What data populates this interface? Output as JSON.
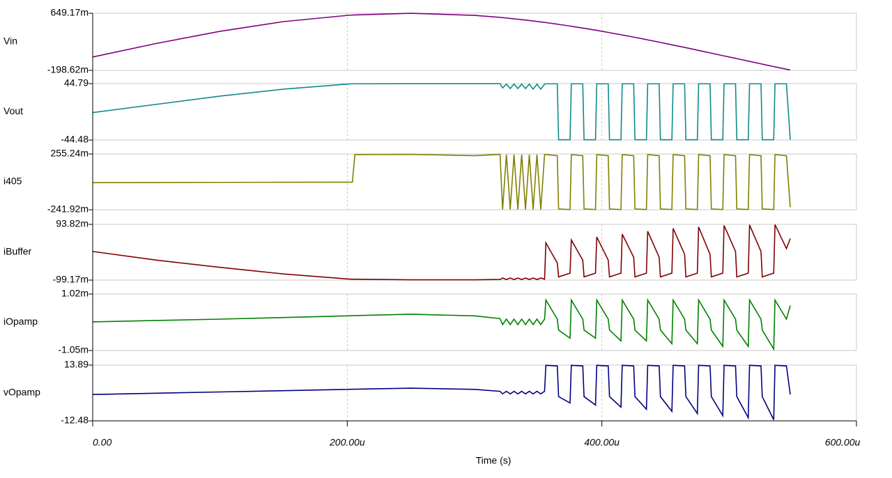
{
  "chart_data": {
    "type": "line",
    "xlabel": "Time (s)",
    "xlim": [
      0,
      0.0006
    ],
    "xticks": [
      {
        "value": 0,
        "label": "0.00"
      },
      {
        "value": 0.0002,
        "label": "200.00u"
      },
      {
        "value": 0.0004,
        "label": "400.00u"
      },
      {
        "value": 0.0006,
        "label": "600.00u"
      }
    ],
    "grid": true,
    "x": [
      0,
      5e-05,
      0.0001,
      0.00015,
      0.0002,
      0.000204,
      0.000206,
      0.00025,
      0.0003,
      0.00032,
      0.000322,
      0.000325,
      0.000328,
      0.000331,
      0.000334,
      0.000337,
      0.00034,
      0.000343,
      0.000346,
      0.000349,
      0.000352,
      0.000355,
      0.000356,
      0.000365,
      0.000366,
      0.000375,
      0.000376,
      0.000385,
      0.000386,
      0.000395,
      0.000396,
      0.000405,
      0.000406,
      0.000415,
      0.000416,
      0.000425,
      0.000426,
      0.000435,
      0.000436,
      0.000445,
      0.000446,
      0.000455,
      0.000456,
      0.000465,
      0.000466,
      0.000475,
      0.000476,
      0.000485,
      0.000486,
      0.000495,
      0.000496,
      0.000505,
      0.000506,
      0.000515,
      0.000516,
      0.000525,
      0.000526,
      0.000535,
      0.000536,
      0.000545,
      0.000548
    ],
    "series": [
      {
        "name": "Vin",
        "color": "#800080",
        "ylim": [
          -0.19862,
          0.64917
        ],
        "yticks": [
          {
            "value": -0.19862,
            "label": "-198.62m"
          },
          {
            "value": 0.64917,
            "label": "649.17m"
          }
        ],
        "values": [
          0,
          0.201,
          0.381,
          0.525,
          0.617,
          0.622,
          0.624,
          0.649,
          0.617,
          0.588,
          0.584,
          0.578,
          0.572,
          0.566,
          0.56,
          0.554,
          0.548,
          0.541,
          0.535,
          0.527,
          0.521,
          0.513,
          0.511,
          0.487,
          0.484,
          0.459,
          0.456,
          0.429,
          0.426,
          0.398,
          0.395,
          0.365,
          0.361,
          0.33,
          0.327,
          0.295,
          0.291,
          0.258,
          0.254,
          0.22,
          0.216,
          0.181,
          0.177,
          0.142,
          0.138,
          0.102,
          0.097,
          0.061,
          0.057,
          0.02,
          0.016,
          -0.02,
          -0.024,
          -0.061,
          -0.065,
          -0.102,
          -0.106,
          -0.142,
          -0.146,
          -0.181,
          -0.192
        ]
      },
      {
        "name": "Vout",
        "color": "#108a8a",
        "ylim": [
          -44.48,
          44.79
        ],
        "yticks": [
          -44.48,
          44.79
        ],
        "values": [
          -1,
          12,
          25,
          36,
          44,
          44.5,
          44.5,
          44.7,
          44.7,
          44.7,
          38,
          44,
          37,
          44,
          37,
          44,
          37,
          44,
          36,
          44,
          36,
          44,
          44.5,
          44.5,
          -44,
          -44,
          44.5,
          44.5,
          -44,
          -44,
          44.5,
          44.5,
          -44,
          -44,
          44.5,
          44.5,
          -44,
          -44,
          44.5,
          44.5,
          -44,
          -44,
          44.5,
          44.5,
          -44,
          -44,
          44.5,
          44.5,
          -44,
          -44,
          44.5,
          44.5,
          -44,
          -44,
          44.5,
          44.5,
          -44,
          -44,
          44.5,
          44.5,
          -44
        ]
      },
      {
        "name": "i405",
        "color": "#808000",
        "ylim": [
          -0.24192,
          0.25524
        ],
        "yticks": [
          {
            "value": -0.24192,
            "label": "-241.92m"
          },
          {
            "value": 0.25524,
            "label": "255.24m"
          }
        ],
        "values": [
          0,
          0.001,
          0.002,
          0.003,
          0.004,
          0.004,
          0.25,
          0.252,
          0.24,
          0.252,
          -0.24,
          0.25,
          -0.24,
          0.25,
          -0.24,
          0.25,
          -0.24,
          0.25,
          -0.24,
          0.25,
          -0.24,
          0.25,
          0.25,
          0.24,
          -0.235,
          -0.24,
          0.25,
          0.24,
          -0.235,
          -0.24,
          0.25,
          0.24,
          -0.235,
          -0.24,
          0.25,
          0.24,
          -0.235,
          -0.24,
          0.25,
          0.24,
          -0.235,
          -0.24,
          0.25,
          0.24,
          -0.235,
          -0.24,
          0.25,
          0.24,
          -0.235,
          -0.24,
          0.25,
          0.24,
          -0.235,
          -0.24,
          0.25,
          0.24,
          -0.235,
          -0.24,
          0.25,
          0.24,
          -0.22
        ]
      },
      {
        "name": "iBuffer",
        "color": "#800000",
        "ylim": [
          -0.09917,
          0.09382
        ],
        "yticks": [
          {
            "value": -0.09917,
            "label": "-99.17m"
          },
          {
            "value": 0.09382,
            "label": "93.82m"
          }
        ],
        "values": [
          0,
          -0.03,
          -0.055,
          -0.078,
          -0.095,
          -0.096,
          -0.096,
          -0.098,
          -0.098,
          -0.097,
          -0.092,
          -0.097,
          -0.092,
          -0.097,
          -0.092,
          -0.097,
          -0.092,
          -0.097,
          -0.092,
          -0.097,
          -0.092,
          -0.096,
          0.03,
          -0.04,
          -0.088,
          -0.075,
          0.04,
          -0.03,
          -0.088,
          -0.075,
          0.05,
          -0.03,
          -0.088,
          -0.075,
          0.06,
          -0.02,
          -0.088,
          -0.075,
          0.07,
          -0.02,
          -0.088,
          -0.075,
          0.08,
          -0.01,
          -0.088,
          -0.075,
          0.085,
          -0.01,
          -0.088,
          -0.075,
          0.09,
          0.0,
          -0.088,
          -0.075,
          0.092,
          0.0,
          -0.088,
          -0.075,
          0.093,
          0.01,
          0.045
        ]
      },
      {
        "name": "iOpamp",
        "color": "#008000",
        "ylim": [
          -0.00105,
          0.00102
        ],
        "yticks": [
          {
            "value": -0.00105,
            "label": "-1.05m"
          },
          {
            "value": 0.00102,
            "label": "1.02m"
          }
        ],
        "values": [
          0,
          5e-05,
          0.0001,
          0.00016,
          0.00022,
          0.00023,
          0.00023,
          0.00028,
          0.00022,
          0.00012,
          -0.0001,
          0.0001,
          -0.0001,
          0.0001,
          -0.0001,
          0.0001,
          -0.0001,
          0.0001,
          -0.0001,
          0.0001,
          -0.0001,
          0.0001,
          0.0008,
          0.0001,
          -0.0003,
          -0.0006,
          0.0008,
          0.0001,
          -0.0003,
          -0.0006,
          0.0008,
          0.0001,
          -0.0003,
          -0.0007,
          0.0008,
          0.0001,
          -0.0003,
          -0.0007,
          0.0008,
          0.0001,
          -0.0003,
          -0.0008,
          0.0008,
          0.0001,
          -0.0003,
          -0.0008,
          0.0008,
          0.0001,
          -0.0003,
          -0.0009,
          0.0008,
          0.0001,
          -0.0003,
          -0.0009,
          0.0008,
          0.0001,
          -0.0003,
          -0.001,
          0.0008,
          0.0001,
          0.0006
        ]
      },
      {
        "name": "vOpamp",
        "color": "#000080",
        "ylim": [
          -12.48,
          13.89
        ],
        "yticks": [
          -12.48,
          13.89
        ],
        "values": [
          0,
          0.6,
          1.2,
          1.8,
          2.4,
          2.5,
          2.5,
          3,
          2.4,
          1.5,
          0.3,
          1.5,
          0.3,
          1.5,
          0.3,
          1.5,
          0.3,
          1.5,
          0.3,
          1.5,
          0.3,
          1.5,
          13.8,
          13.5,
          -1,
          -4,
          13.8,
          13.5,
          -1,
          -5,
          13.8,
          13.5,
          -1,
          -6,
          13.8,
          13.5,
          -1,
          -7,
          13.8,
          13.5,
          -1,
          -8,
          13.8,
          13.5,
          -1,
          -9,
          13.8,
          13.5,
          -1,
          -10,
          13.8,
          13.5,
          -1,
          -11,
          13.8,
          13.5,
          -1,
          -12,
          13.8,
          13.5,
          0
        ]
      }
    ]
  }
}
